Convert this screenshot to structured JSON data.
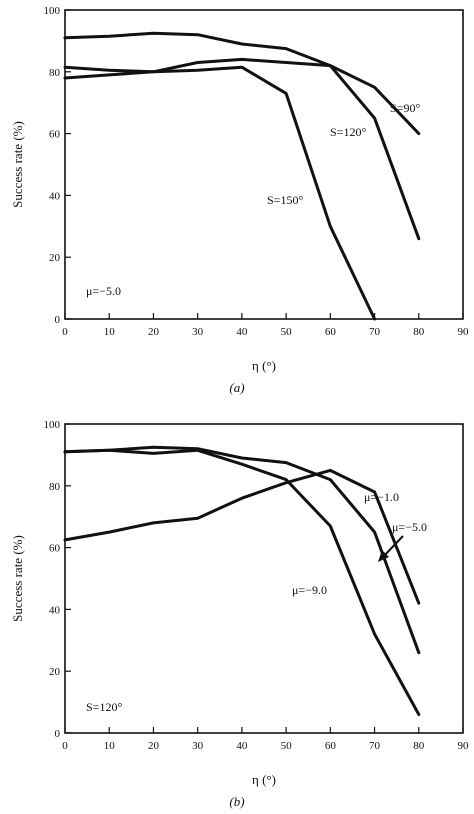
{
  "chart_data": [
    {
      "type": "line",
      "caption": "(a)",
      "xlabel": "η (°)",
      "ylabel": "Success rate (%)",
      "xlim": [
        0,
        90
      ],
      "ylim": [
        0,
        100
      ],
      "xticks": [
        "0",
        "10",
        "20",
        "30",
        "40",
        "50",
        "60",
        "70",
        "80",
        "90"
      ],
      "yticks": [
        "0",
        "20",
        "40",
        "60",
        "80",
        "100"
      ],
      "grid": false,
      "annotations": [
        {
          "text": "S=90°"
        },
        {
          "text": "S=120°"
        },
        {
          "text": "S=150°"
        },
        {
          "text": "μ=−5.0"
        }
      ],
      "series": [
        {
          "name": "S=90°",
          "x": [
            0,
            10,
            20,
            30,
            40,
            50,
            60,
            70,
            80
          ],
          "values": [
            78,
            79,
            80,
            83,
            84,
            83,
            82,
            75,
            60
          ]
        },
        {
          "name": "S=120°",
          "x": [
            0,
            10,
            20,
            30,
            40,
            50,
            60,
            70,
            80
          ],
          "values": [
            91,
            91.5,
            92.5,
            92,
            89,
            87.5,
            82,
            65,
            26
          ]
        },
        {
          "name": "S=150°",
          "x": [
            0,
            10,
            20,
            30,
            40,
            50,
            60,
            70
          ],
          "values": [
            81.5,
            80.5,
            80,
            80.5,
            81.5,
            73,
            30,
            0
          ]
        }
      ]
    },
    {
      "type": "line",
      "caption": "(b)",
      "xlabel": "η (°)",
      "ylabel": "Success rate (%)",
      "xlim": [
        0,
        90
      ],
      "ylim": [
        0,
        100
      ],
      "xticks": [
        "0",
        "10",
        "20",
        "30",
        "40",
        "50",
        "60",
        "70",
        "80",
        "90"
      ],
      "yticks": [
        "0",
        "20",
        "40",
        "60",
        "80",
        "100"
      ],
      "grid": false,
      "annotations": [
        {
          "text": "μ=−1.0"
        },
        {
          "text": "μ=−5.0"
        },
        {
          "text": "μ=−9.0"
        },
        {
          "text": "S=120°"
        }
      ],
      "series": [
        {
          "name": "μ=−1.0",
          "x": [
            0,
            10,
            20,
            30,
            40,
            50,
            60,
            70,
            80
          ],
          "values": [
            62.5,
            65,
            68,
            69.5,
            76,
            81,
            85,
            78,
            42
          ]
        },
        {
          "name": "μ=−5.0",
          "x": [
            0,
            10,
            20,
            30,
            40,
            50,
            60,
            70,
            80
          ],
          "values": [
            91,
            91.5,
            92.5,
            92,
            89,
            87.5,
            82,
            65,
            26
          ]
        },
        {
          "name": "μ=−9.0",
          "x": [
            0,
            10,
            20,
            30,
            40,
            50,
            60,
            70,
            80
          ],
          "values": [
            91,
            91.5,
            90.5,
            91.5,
            87,
            82,
            67,
            32,
            6
          ]
        }
      ]
    }
  ]
}
